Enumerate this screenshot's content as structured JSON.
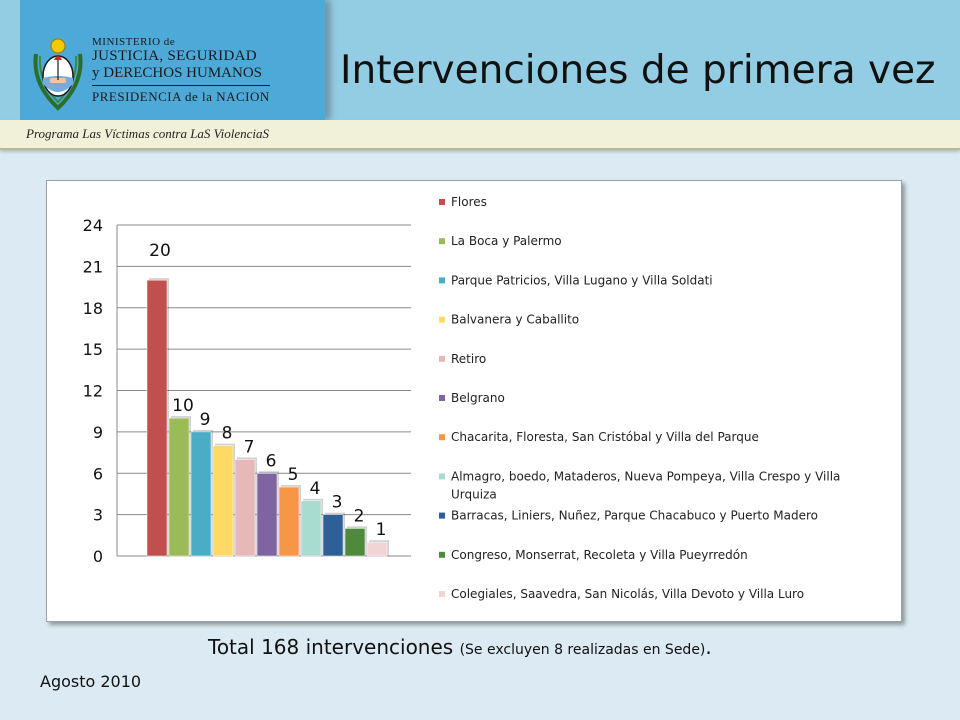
{
  "header": {
    "ministry_line1": "MINISTERIO de",
    "ministry_line2": "JUSTICIA, SEGURIDAD",
    "ministry_line3": "y DERECHOS HUMANOS",
    "ministry_line4": "PRESIDENCIA de la NACION",
    "title": "Intervenciones de primera vez",
    "program": "Programa Las Víctimas contra LaS ViolenciaS"
  },
  "footer": {
    "total_main": "Total 168 intervenciones",
    "total_note": "(Se excluyen 8 realizadas en Sede)",
    "total_end": ".",
    "date": "Agosto 2010"
  },
  "chart_data": {
    "type": "bar",
    "categories": [
      "Flores",
      "La Boca y Palermo",
      "Parque Patricios, Villa Lugano y Villa Soldati",
      "Balvanera y Caballito",
      "Retiro",
      "Belgrano",
      "Chacarita, Floresta, San Cristóbal y Villa del Parque",
      "Almagro, boedo, Mataderos, Nueva Pompeya, Villa Crespo y Villa Urquiza",
      "Barracas, Liniers, Nuñez, Parque Chacabuco y Puerto Madero",
      "Congreso, Monserrat, Recoleta y Villa Pueyrredón",
      "Colegiales, Saavedra, San Nicolás, Villa Devoto y Villa Luro"
    ],
    "values": [
      20,
      10,
      9,
      8,
      7,
      6,
      5,
      4,
      3,
      2,
      1
    ],
    "colors": [
      "#c0504d",
      "#9bbb59",
      "#4bacc6",
      "#ffd966",
      "#e6b9b8",
      "#8064a2",
      "#f79646",
      "#a9dcd0",
      "#2f5f98",
      "#4f8a3c",
      "#f2d4d6"
    ],
    "ylim": [
      0,
      24
    ],
    "yticks": [
      0,
      3,
      6,
      9,
      12,
      15,
      18,
      21,
      24
    ],
    "grid": true,
    "legend": "right",
    "data_labels": true
  }
}
